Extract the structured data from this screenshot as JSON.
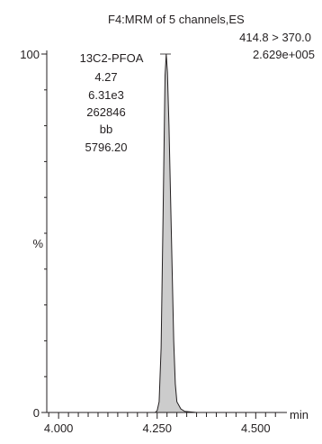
{
  "chart_data": {
    "type": "line",
    "header": {
      "line1": "F4:MRM of 5 channels,ES",
      "line2": "414.8 > 370.0",
      "line3": "2.629e+005"
    },
    "peak_annotation": [
      "13C2-PFOA",
      "4.27",
      "6.31e3",
      "262846",
      "bb",
      "5796.20"
    ],
    "xlabel": "min",
    "ylabel": "%",
    "xlim": [
      3.97,
      4.57
    ],
    "ylim": [
      0,
      100
    ],
    "x_ticks": [
      4.0,
      4.25,
      4.5
    ],
    "x_tick_labels": [
      "4.000",
      "4.250",
      "4.500"
    ],
    "y_ticks": [
      0,
      100
    ],
    "y_tick_labels": [
      "0",
      "100"
    ],
    "grid": false,
    "fill_color": "#cccccc",
    "line_color": "#231f20",
    "series": [
      {
        "x": [
          3.97,
          4.05,
          4.1,
          4.15,
          4.2,
          4.245,
          4.25,
          4.255,
          4.26,
          4.265,
          4.27,
          4.273,
          4.276,
          4.28,
          4.284,
          4.288,
          4.292,
          4.296,
          4.3,
          4.31,
          4.32,
          4.35,
          4.4,
          4.45,
          4.5,
          4.57
        ],
        "y": [
          0,
          0,
          0,
          0,
          0,
          0,
          0.5,
          3,
          18,
          55,
          94,
          100,
          95,
          80,
          60,
          40,
          20,
          8,
          3,
          1,
          0.3,
          0,
          0,
          0,
          0,
          0
        ]
      }
    ]
  }
}
